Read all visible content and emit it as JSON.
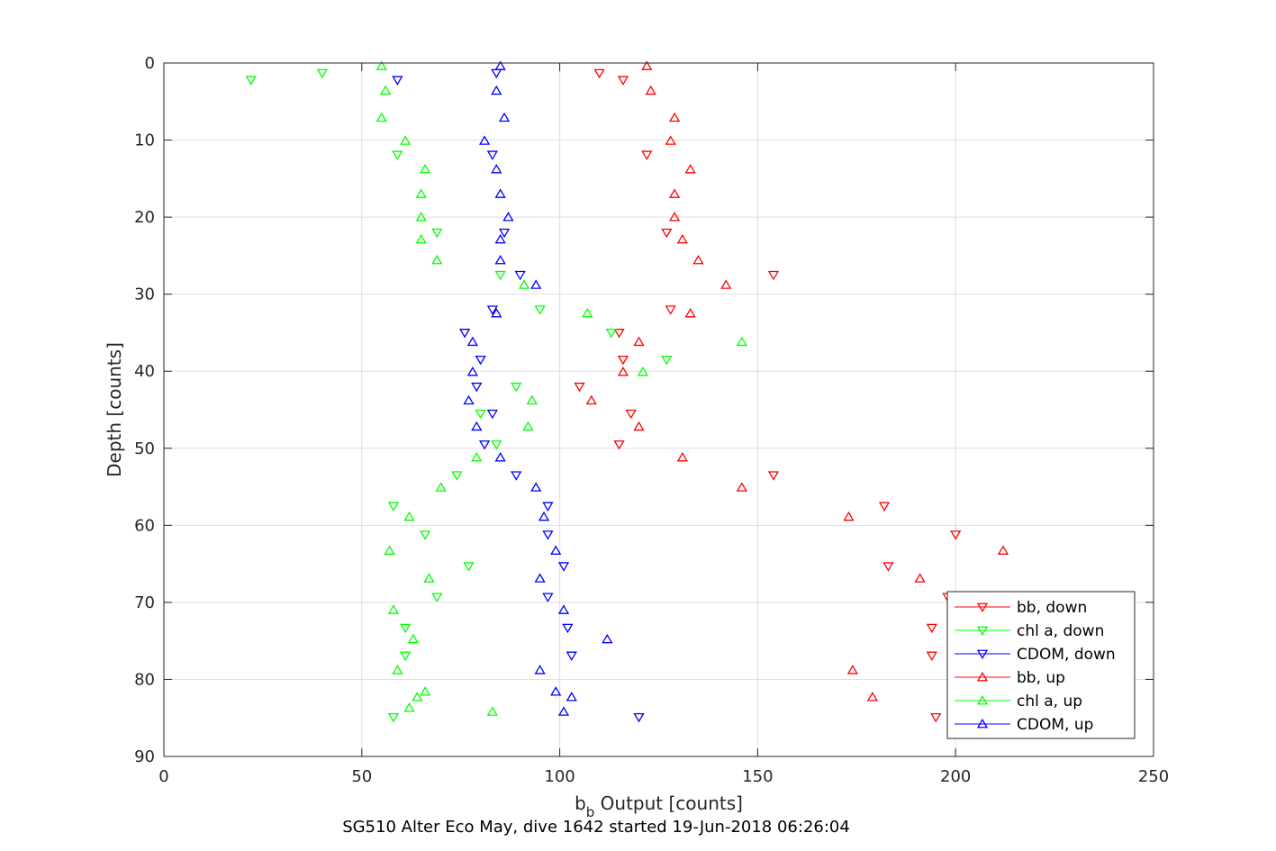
{
  "chart_data": {
    "type": "scatter",
    "xlabel_main": "b",
    "xlabel_sub": "b",
    "xlabel_rest": " Output [counts]",
    "ylabel": "Depth [counts]",
    "caption": "SG510 Alter Eco May, dive 1642 started 19-Jun-2018 06:26:04",
    "xlim": [
      0,
      250
    ],
    "ylim": [
      0,
      90
    ],
    "y_reversed": true,
    "grid": true,
    "legend_position": "bottom-right",
    "x_ticks": [
      "0",
      "50",
      "100",
      "150",
      "200",
      "250"
    ],
    "y_ticks": [
      "0",
      "10",
      "20",
      "30",
      "40",
      "50",
      "60",
      "70",
      "80",
      "90"
    ],
    "series": [
      {
        "name": "bb, down",
        "color": "#ff0000",
        "marker": "triangle-down",
        "points": [
          [
            110,
            1.3
          ],
          [
            116,
            2.2
          ],
          [
            122,
            11.9
          ],
          [
            127,
            22.0
          ],
          [
            154,
            27.5
          ],
          [
            128,
            32.0
          ],
          [
            115,
            35.0
          ],
          [
            116,
            38.5
          ],
          [
            105,
            42.0
          ],
          [
            118,
            45.5
          ],
          [
            115,
            49.5
          ],
          [
            154,
            53.5
          ],
          [
            182,
            57.5
          ],
          [
            200,
            61.2
          ],
          [
            183,
            65.3
          ],
          [
            198,
            69.3
          ],
          [
            194,
            73.3
          ],
          [
            194,
            76.9
          ],
          [
            195,
            84.9
          ]
        ]
      },
      {
        "name": "chl a, down",
        "color": "#00ff00",
        "marker": "triangle-down",
        "points": [
          [
            40,
            1.3
          ],
          [
            22,
            2.2
          ],
          [
            59,
            11.9
          ],
          [
            69,
            22.0
          ],
          [
            85,
            27.5
          ],
          [
            95,
            32.0
          ],
          [
            113,
            35.0
          ],
          [
            127,
            38.5
          ],
          [
            89,
            42.0
          ],
          [
            80,
            45.5
          ],
          [
            84,
            49.5
          ],
          [
            74,
            53.5
          ],
          [
            58,
            57.5
          ],
          [
            66,
            61.2
          ],
          [
            77,
            65.3
          ],
          [
            69,
            69.3
          ],
          [
            61,
            73.3
          ],
          [
            61,
            76.9
          ],
          [
            58,
            84.9
          ]
        ]
      },
      {
        "name": "CDOM, down",
        "color": "#0000ff",
        "marker": "triangle-down",
        "points": [
          [
            84,
            1.3
          ],
          [
            59,
            2.2
          ],
          [
            83,
            11.9
          ],
          [
            86,
            22.0
          ],
          [
            90,
            27.5
          ],
          [
            83,
            32.0
          ],
          [
            76,
            35.0
          ],
          [
            80,
            38.5
          ],
          [
            79,
            42.0
          ],
          [
            83,
            45.5
          ],
          [
            81,
            49.5
          ],
          [
            89,
            53.5
          ],
          [
            97,
            57.5
          ],
          [
            97,
            61.2
          ],
          [
            101,
            65.3
          ],
          [
            97,
            69.3
          ],
          [
            102,
            73.3
          ],
          [
            103,
            76.9
          ],
          [
            120,
            84.9
          ]
        ]
      },
      {
        "name": "bb, up",
        "color": "#ff0000",
        "marker": "triangle-up",
        "points": [
          [
            122,
            0.4
          ],
          [
            123,
            3.6
          ],
          [
            129,
            7.1
          ],
          [
            128,
            10.1
          ],
          [
            133,
            13.8
          ],
          [
            129,
            17.0
          ],
          [
            129,
            20.0
          ],
          [
            131,
            22.9
          ],
          [
            135,
            25.6
          ],
          [
            142,
            28.8
          ],
          [
            133,
            32.5
          ],
          [
            120,
            36.2
          ],
          [
            116,
            40.1
          ],
          [
            108,
            43.8
          ],
          [
            120,
            47.2
          ],
          [
            131,
            51.2
          ],
          [
            146,
            55.1
          ],
          [
            173,
            58.9
          ],
          [
            212,
            63.3
          ],
          [
            191,
            66.9
          ],
          [
            174,
            78.8
          ],
          [
            179,
            82.3
          ]
        ]
      },
      {
        "name": "chl a, up",
        "color": "#00ff00",
        "marker": "triangle-up",
        "points": [
          [
            55,
            0.4
          ],
          [
            56,
            3.6
          ],
          [
            55,
            7.1
          ],
          [
            61,
            10.1
          ],
          [
            66,
            13.8
          ],
          [
            65,
            17.0
          ],
          [
            65,
            20.0
          ],
          [
            65,
            22.9
          ],
          [
            69,
            25.6
          ],
          [
            91,
            28.8
          ],
          [
            107,
            32.5
          ],
          [
            146,
            36.2
          ],
          [
            121,
            40.1
          ],
          [
            93,
            43.8
          ],
          [
            92,
            47.2
          ],
          [
            79,
            51.2
          ],
          [
            70,
            55.1
          ],
          [
            62,
            58.9
          ],
          [
            57,
            63.3
          ],
          [
            67,
            66.9
          ],
          [
            58,
            71.0
          ],
          [
            63,
            74.8
          ],
          [
            59,
            78.8
          ],
          [
            66,
            81.6
          ],
          [
            64,
            82.3
          ],
          [
            62,
            83.7
          ],
          [
            83,
            84.2
          ]
        ]
      },
      {
        "name": "CDOM, up",
        "color": "#0000ff",
        "marker": "triangle-up",
        "points": [
          [
            85,
            0.4
          ],
          [
            84,
            3.6
          ],
          [
            86,
            7.1
          ],
          [
            81,
            10.1
          ],
          [
            84,
            13.8
          ],
          [
            85,
            17.0
          ],
          [
            87,
            20.0
          ],
          [
            85,
            22.9
          ],
          [
            85,
            25.6
          ],
          [
            94,
            28.8
          ],
          [
            84,
            32.5
          ],
          [
            78,
            36.2
          ],
          [
            78,
            40.1
          ],
          [
            77,
            43.8
          ],
          [
            79,
            47.2
          ],
          [
            85,
            51.2
          ],
          [
            94,
            55.1
          ],
          [
            96,
            58.9
          ],
          [
            99,
            63.3
          ],
          [
            95,
            66.9
          ],
          [
            101,
            71.0
          ],
          [
            112,
            74.8
          ],
          [
            95,
            78.8
          ],
          [
            99,
            81.6
          ],
          [
            103,
            82.3
          ],
          [
            101,
            84.2
          ]
        ]
      }
    ]
  }
}
